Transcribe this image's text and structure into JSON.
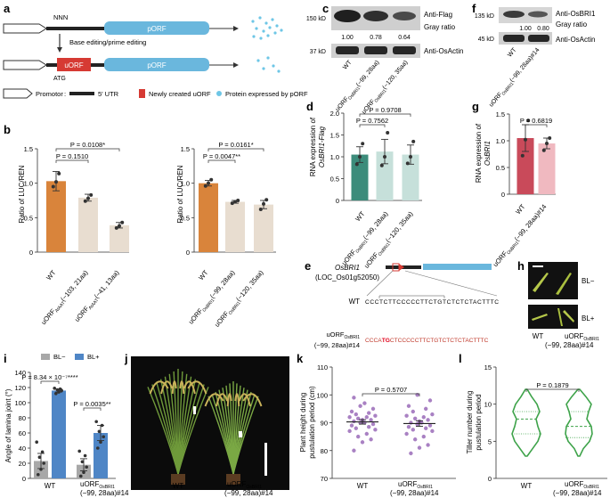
{
  "panels": {
    "a": {
      "label": "a",
      "nnn": "NNN",
      "porf": "pORF",
      "uorf": "uORF",
      "atg": "ATG",
      "editing": "Base editing/prime editing",
      "legend": {
        "promotor": "Promotor",
        "utr": "5′ UTR",
        "new_uorf": "Newly created uORF",
        "protein": "Protein expressed by pORF"
      },
      "colors": {
        "porf": "#6ab7dd",
        "uorf": "#d63a33",
        "dots": "#6ec6e6"
      }
    },
    "b": {
      "label": "b",
      "ylabel": "Ratio of LUC/REN",
      "yticks": [
        "0",
        "0.5",
        "1.0",
        "1.5"
      ],
      "left": {
        "cats": [
          "WT",
          "uORFₐₛₐₚₚₚ(−103, 21aa)",
          "uORFₐₛₐₚₚₚ(−41, 13aa)"
        ],
        "cat_main": [
          "WT",
          "uORF",
          "uORF"
        ],
        "cat_sub": [
          "",
          "AtAAT",
          "AtAAT"
        ],
        "cat_tail": [
          "",
          "(−103, 21aa)",
          "(−41, 13aa)"
        ],
        "sig1": "P = 0.1510",
        "sig2": "P = 0.0108*"
      },
      "right": {
        "cat_main": [
          "WT",
          "uORF",
          "uORF"
        ],
        "cat_sub": [
          "",
          "OsBRI1",
          "OsBRI1"
        ],
        "cat_tail": [
          "",
          "(−99, 28aa)",
          "(−120, 35aa)"
        ],
        "sig1": "P = 0.0047**",
        "sig2": "P = 0.0161*"
      }
    },
    "c": {
      "label": "c",
      "mw_top": "150 kD",
      "mw_bottom": "37 kD",
      "anti_top": "Anti-Flag",
      "gray_ratio_label": "Gray ratio",
      "anti_bottom": "Anti-OsActin",
      "ratios": [
        "1.00",
        "0.78",
        "0.64"
      ],
      "cat_main": [
        "WT",
        "uORF",
        "uORF"
      ],
      "cat_sub": [
        "",
        "OsBRI1",
        "OsBRI1"
      ],
      "cat_tail": [
        "",
        "(−99, 28aa)",
        "(−120, 35aa)"
      ]
    },
    "d": {
      "label": "d",
      "ylabel1": "RNA expression of",
      "ylabel2": "OsBRI1-Flag",
      "yticks": [
        "0",
        "0.5",
        "1.0",
        "1.5",
        "2.0"
      ],
      "sig1": "P = 0.7562",
      "sig2": "P = 0.9708",
      "cat_main": [
        "WT",
        "uORF",
        "uORF"
      ],
      "cat_sub": [
        "",
        "OsBRI1",
        "OsBRI1"
      ],
      "cat_tail": [
        "",
        "(−99, 28aa)",
        "(−120, 35aa)"
      ]
    },
    "e": {
      "label": "e",
      "gene": "OsBRI1",
      "locus": "(LOC_Os01g52050)",
      "wt_label": "WT",
      "wt_seq": "CCCTCTTCCCCCTTCTGTCTCTCTACTTTC",
      "mut_label1": "uORF",
      "mut_sub": "OsBRI1",
      "mut_label2": "(−99, 28aa)#14",
      "mut_seq_a": "CCCA",
      "mut_seq_b": "TG",
      "mut_seq_c": "CTCCCCCTTCTGTCTCTCTACTTTC"
    },
    "f": {
      "label": "f",
      "mw_top": "135 kD",
      "mw_bottom": "45 kD",
      "anti_top": "Anti-OsBRI1",
      "gray_ratio_label": "Gray ratio",
      "anti_bottom": "Anti-OsActin",
      "ratios": [
        "1.00",
        "0.80"
      ],
      "cat_main": [
        "WT",
        "uORF"
      ],
      "cat_sub": [
        "",
        "OsBRI1"
      ],
      "cat_tail": [
        "",
        "(−99, 28aa)#14"
      ]
    },
    "g": {
      "label": "g",
      "ylabel1": "RNA expression of",
      "ylabel2": "OsBRI1",
      "yticks": [
        "0",
        "0.5",
        "1.0",
        "1.5"
      ],
      "sig": "P = 0.6819",
      "cat_main": [
        "WT",
        "uORF"
      ],
      "cat_sub": [
        "",
        "OsBRI1"
      ],
      "cat_tail": [
        "",
        "(−99, 28aa)#14"
      ]
    },
    "h": {
      "label": "h",
      "bl_minus": "BL−",
      "bl_plus": "BL+",
      "cat1": "WT",
      "cat2_main": "uORF",
      "cat2_sub": "OsBRI1",
      "cat2_tail": "(−99, 28aa)#14"
    },
    "i": {
      "label": "i",
      "ylabel": "Angle of lamina joint (°)",
      "yticks": [
        "0",
        "20",
        "40",
        "60",
        "80",
        "100",
        "120",
        "140"
      ],
      "legend_minus": "BL−",
      "legend_plus": "BL+",
      "sig1": "P = 8.34 × 10⁻⁷****",
      "sig2": "P = 0.0035**",
      "cat1": "WT",
      "cat2_main": "uORF",
      "cat2_sub": "OsBRI1",
      "cat2_tail": "(−99, 28aa)#14",
      "colors": {
        "minus": "#a8a8a8",
        "plus": "#4f86c6"
      }
    },
    "j": {
      "label": "j",
      "cat1": "WT",
      "cat2_main": "uORF",
      "cat2_sub": "OsBRI1",
      "cat2_tail": "(−99, 28aa)#14"
    },
    "k": {
      "label": "k",
      "ylabel1": "Plant height during",
      "ylabel2": "pustulation period (cm)",
      "yticks": [
        "70",
        "80",
        "90",
        "100",
        "110"
      ],
      "sig": "P = 0.5707",
      "cat1": "WT",
      "cat2_main": "uORF",
      "cat2_sub": "OsBRI1",
      "cat2_tail": "(−99, 28aa)#14",
      "colors": {
        "dots": "#9a6bb8"
      }
    },
    "l": {
      "label": "l",
      "ylabel1": "Tiller number during",
      "ylabel2": "pustulation period",
      "yticks": [
        "0",
        "5",
        "10",
        "15"
      ],
      "sig": "P = 0.1879",
      "cat1": "WT",
      "cat2_main": "uORF",
      "cat2_sub": "OsBRI1",
      "cat2_tail": "(−99, 28aa)#14",
      "colors": {
        "violin": "#3ea34a"
      }
    }
  },
  "chart_data": [
    {
      "id": "b-left",
      "type": "bar",
      "ylabel": "Ratio of LUC/REN",
      "ylim": [
        0,
        1.5
      ],
      "categories": [
        "WT",
        "uORF AtAAT (−103, 21aa)",
        "uORF AtAAT (−41, 13aa)"
      ],
      "values": [
        1.03,
        0.79,
        0.39
      ],
      "errors": [
        0.14,
        0.05,
        0.04
      ],
      "points": [
        [
          0.95,
          1.02,
          1.14
        ],
        [
          0.74,
          0.78,
          0.83
        ],
        [
          0.35,
          0.38,
          0.43
        ]
      ],
      "colors": [
        "#d9843b",
        "#e8ddd0",
        "#e8ddd0"
      ],
      "annotations": [
        "P = 0.1510",
        "P = 0.0108*"
      ]
    },
    {
      "id": "b-right",
      "type": "bar",
      "ylabel": "Ratio of LUC/REN",
      "ylim": [
        0,
        1.5
      ],
      "categories": [
        "WT",
        "uORF OsBRI1 (−99, 28aa)",
        "uORF OsBRI1 (−120, 35aa)"
      ],
      "values": [
        1.0,
        0.73,
        0.69
      ],
      "errors": [
        0.04,
        0.02,
        0.06
      ],
      "points": [
        [
          0.96,
          1.0,
          1.05
        ],
        [
          0.71,
          0.73,
          0.75
        ],
        [
          0.62,
          0.7,
          0.76
        ]
      ],
      "colors": [
        "#d9843b",
        "#e8ddd0",
        "#e8ddd0"
      ],
      "annotations": [
        "P = 0.0047**",
        "P = 0.0161*"
      ]
    },
    {
      "id": "d",
      "type": "bar",
      "ylabel": "RNA expression of OsBRI1-Flag",
      "ylim": [
        0,
        2.0
      ],
      "categories": [
        "WT",
        "uORF OsBRI1 (−99, 28aa)",
        "uORF OsBRI1 (−120, 35aa)"
      ],
      "values": [
        1.05,
        1.12,
        1.05
      ],
      "errors": [
        0.18,
        0.28,
        0.22
      ],
      "points": [
        [
          0.83,
          1.0,
          1.3
        ],
        [
          0.8,
          1.0,
          1.55
        ],
        [
          0.85,
          1.0,
          1.35
        ]
      ],
      "colors": [
        "#3c8c7b",
        "#c6e0da",
        "#c6e0da"
      ],
      "annotations": [
        "P = 0.7562",
        "P = 0.9708"
      ]
    },
    {
      "id": "g",
      "type": "bar",
      "ylabel": "RNA expression of OsBRI1",
      "ylim": [
        0,
        1.5
      ],
      "categories": [
        "WT",
        "uORF OsBRI1 (−99, 28aa)#14"
      ],
      "values": [
        1.05,
        0.95
      ],
      "errors": [
        0.25,
        0.1
      ],
      "points": [
        [
          0.72,
          1.02,
          1.38
        ],
        [
          0.82,
          0.95,
          1.05
        ]
      ],
      "colors": [
        "#c94a5a",
        "#f0b9c0"
      ],
      "annotations": [
        "P = 0.6819"
      ]
    },
    {
      "id": "i",
      "type": "bar",
      "ylabel": "Angle of lamina joint (°)",
      "ylim": [
        0,
        140
      ],
      "categories": [
        "WT",
        "uORF OsBRI1 (−99, 28aa)#14"
      ],
      "series": [
        {
          "name": "BL−",
          "values": [
            23,
            18
          ],
          "errors": [
            10,
            8
          ],
          "points": [
            [
              5,
              12,
              20,
              28,
              35,
              48
            ],
            [
              3,
              8,
              15,
              22,
              30,
              36
            ]
          ]
        },
        {
          "name": "BL+",
          "values": [
            116,
            60
          ],
          "errors": [
            2,
            10
          ],
          "points": [
            [
              112,
              114,
              116,
              117,
              118,
              119
            ],
            [
              40,
              48,
              55,
              62,
              70,
              75
            ]
          ]
        }
      ],
      "annotations": [
        "P = 8.34 × 10⁻⁷****",
        "P = 0.0035**"
      ]
    },
    {
      "id": "k",
      "type": "scatter",
      "ylabel": "Plant height during pustulation period (cm)",
      "ylim": [
        70,
        110
      ],
      "categories": [
        "WT",
        "uORF OsBRI1 (−99, 28aa)#14"
      ],
      "means": [
        90.3,
        89.7
      ],
      "errors": [
        0.8,
        1.0
      ],
      "points": [
        [
          80,
          83,
          84,
          85,
          86,
          87,
          87.5,
          88,
          88.5,
          89,
          89.5,
          90,
          90,
          90.5,
          91,
          91,
          91.5,
          92,
          92,
          92.5,
          93,
          93.5,
          94,
          95,
          96,
          97,
          99
        ],
        [
          79,
          81,
          82,
          84,
          85,
          86,
          87,
          87.5,
          88,
          88.5,
          89,
          89.5,
          90,
          90,
          90.5,
          91,
          91.5,
          92,
          92.5,
          93,
          94,
          95,
          96,
          98,
          100
        ]
      ],
      "annotations": [
        "P = 0.5707"
      ]
    },
    {
      "id": "l",
      "type": "violin",
      "ylabel": "Tiller number during pustulation period",
      "ylim": [
        0,
        15
      ],
      "categories": [
        "WT",
        "uORF OsBRI1 (−99, 28aa)#14"
      ],
      "median": [
        8,
        7
      ],
      "quartiles": [
        [
          6,
          9
        ],
        [
          5.5,
          9
        ]
      ],
      "range": [
        [
          3,
          12
        ],
        [
          3,
          12
        ]
      ],
      "annotations": [
        "P = 0.1879"
      ]
    }
  ]
}
